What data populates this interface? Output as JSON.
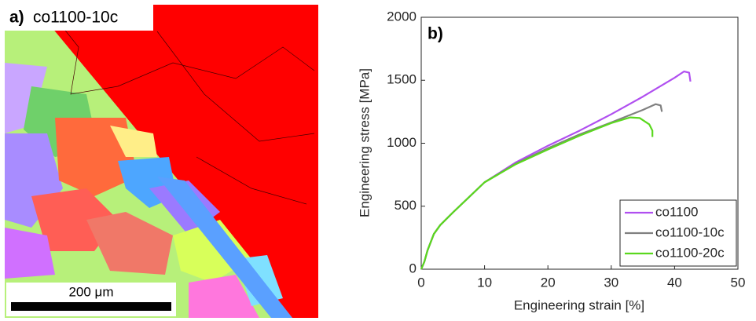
{
  "panel_a": {
    "label": "a)",
    "title": "co1100-10c",
    "scale_bar": "200 μm"
  },
  "chart_data": {
    "type": "line",
    "panel_label": "b)",
    "x_label": "Engineering strain [%]",
    "y_label": "Engineering stress [MPa]",
    "xlim": [
      0,
      50
    ],
    "xticks": [
      0,
      10,
      20,
      30,
      40,
      50
    ],
    "ylim": [
      0,
      2000
    ],
    "yticks": [
      0,
      500,
      1000,
      1500,
      2000
    ],
    "legend": "lower right",
    "series": [
      {
        "name": "co1100",
        "color": "#b04ff0",
        "x": [
          0,
          0.5,
          1,
          2,
          3,
          5,
          10,
          15,
          20,
          25,
          30,
          35,
          40,
          41.5,
          42.3,
          42.5
        ],
        "values": [
          0,
          60,
          150,
          280,
          350,
          450,
          690,
          850,
          980,
          1100,
          1230,
          1370,
          1520,
          1570,
          1560,
          1490
        ]
      },
      {
        "name": "co1100-10c",
        "color": "#808080",
        "x": [
          0,
          0.5,
          1,
          2,
          3,
          5,
          10,
          15,
          20,
          25,
          30,
          35,
          37,
          37.8,
          38
        ],
        "values": [
          0,
          60,
          150,
          280,
          350,
          450,
          690,
          840,
          960,
          1070,
          1165,
          1265,
          1310,
          1300,
          1250
        ]
      },
      {
        "name": "co1100-20c",
        "color": "#5ad81e",
        "x": [
          0,
          0.5,
          1,
          2,
          3,
          5,
          10,
          15,
          20,
          25,
          30,
          33,
          34.5,
          36,
          36.5,
          36.5
        ],
        "values": [
          0,
          60,
          150,
          280,
          350,
          450,
          690,
          835,
          950,
          1060,
          1160,
          1205,
          1200,
          1150,
          1100,
          1050
        ]
      }
    ]
  }
}
